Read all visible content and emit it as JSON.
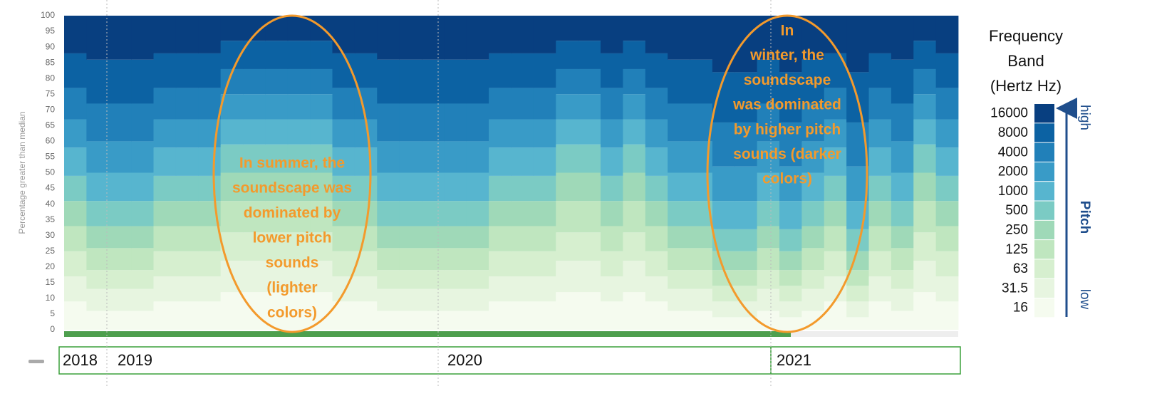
{
  "chart_data": {
    "type": "stacked_bar",
    "y_label": "Percentage greater than median",
    "ylim": [
      0,
      100
    ],
    "yticks": [
      0,
      5,
      10,
      15,
      20,
      25,
      30,
      35,
      40,
      45,
      50,
      55,
      60,
      65,
      70,
      75,
      80,
      85,
      90,
      95,
      100
    ],
    "categories": [
      null,
      null,
      null,
      null,
      null,
      null,
      null,
      null,
      null,
      null,
      null,
      null,
      null,
      null,
      null,
      null,
      null,
      null,
      null,
      null,
      null,
      null,
      null,
      null,
      null,
      null,
      null,
      null,
      null,
      null,
      null,
      null,
      null,
      null,
      null,
      null,
      null,
      null,
      null,
      null
    ],
    "year_labels": [
      "2018",
      "2019",
      "2020",
      "2021"
    ],
    "legend_title": [
      "Frequency",
      "Band",
      "(Hertz Hz)"
    ],
    "pitch_labels": {
      "high": "high",
      "axis": "Pitch",
      "low": "low"
    },
    "annotations": [
      {
        "lines": [
          "In summer, the",
          "soundscape was",
          "dominated by",
          "lower pitch",
          "sounds",
          "(lighter",
          "colors)"
        ]
      },
      {
        "lines": [
          "In",
          "winter, the",
          "soundscape",
          "was dominated",
          "by higher pitch",
          "sounds (darker",
          "colors)"
        ]
      }
    ],
    "series": [
      {
        "name": "16",
        "color": "#f5fbef",
        "values": [
          9,
          6,
          6,
          6,
          9,
          9,
          9,
          12,
          12,
          12,
          12,
          12,
          9,
          9,
          6,
          6,
          6,
          6,
          6,
          9,
          9,
          9,
          12,
          12,
          9,
          12,
          9,
          6,
          6,
          4,
          4,
          6,
          4,
          6,
          9,
          4,
          9,
          6,
          12,
          9
        ]
      },
      {
        "name": "31.5",
        "color": "#e7f5e0",
        "values": [
          8,
          7,
          7,
          7,
          8,
          8,
          8,
          10,
          10,
          10,
          10,
          10,
          8,
          8,
          7,
          7,
          7,
          7,
          7,
          8,
          8,
          8,
          10,
          10,
          8,
          10,
          8,
          7,
          7,
          5,
          5,
          7,
          5,
          7,
          8,
          5,
          8,
          7,
          10,
          8
        ]
      },
      {
        "name": "63",
        "color": "#d6efcf",
        "values": [
          8,
          6,
          6,
          6,
          8,
          8,
          8,
          9,
          9,
          9,
          9,
          9,
          8,
          8,
          6,
          6,
          6,
          6,
          6,
          8,
          8,
          8,
          9,
          9,
          8,
          9,
          8,
          6,
          6,
          5,
          5,
          6,
          5,
          6,
          8,
          5,
          8,
          6,
          9,
          8
        ]
      },
      {
        "name": "125",
        "color": "#bfe6bf",
        "values": [
          8,
          7,
          7,
          7,
          8,
          8,
          8,
          10,
          10,
          10,
          10,
          10,
          8,
          8,
          7,
          7,
          7,
          7,
          7,
          8,
          8,
          8,
          10,
          10,
          8,
          10,
          8,
          7,
          7,
          5,
          5,
          7,
          5,
          7,
          8,
          5,
          8,
          7,
          10,
          8
        ]
      },
      {
        "name": "250",
        "color": "#9fd9b8",
        "values": [
          8,
          7,
          7,
          7,
          8,
          8,
          8,
          9,
          9,
          9,
          9,
          9,
          8,
          8,
          7,
          7,
          7,
          7,
          7,
          8,
          8,
          8,
          9,
          9,
          8,
          9,
          8,
          7,
          7,
          6,
          6,
          7,
          6,
          7,
          8,
          6,
          8,
          7,
          9,
          8
        ]
      },
      {
        "name": "500",
        "color": "#7bcbc4",
        "values": [
          8,
          8,
          8,
          8,
          8,
          8,
          8,
          9,
          9,
          9,
          9,
          9,
          8,
          8,
          8,
          8,
          8,
          8,
          8,
          8,
          8,
          8,
          9,
          9,
          8,
          9,
          8,
          8,
          8,
          7,
          7,
          8,
          7,
          8,
          8,
          7,
          8,
          8,
          9,
          8
        ]
      },
      {
        "name": "1000",
        "color": "#57b5cf",
        "values": [
          9,
          9,
          9,
          9,
          9,
          9,
          9,
          8,
          8,
          8,
          8,
          8,
          9,
          9,
          9,
          9,
          9,
          9,
          9,
          9,
          9,
          9,
          8,
          8,
          9,
          8,
          9,
          9,
          9,
          9,
          9,
          9,
          9,
          9,
          9,
          9,
          9,
          9,
          8,
          9
        ]
      },
      {
        "name": "2000",
        "color": "#399bc7",
        "values": [
          9,
          10,
          10,
          10,
          9,
          9,
          9,
          8,
          8,
          8,
          8,
          8,
          9,
          9,
          10,
          10,
          10,
          10,
          10,
          9,
          9,
          9,
          8,
          8,
          9,
          8,
          9,
          10,
          10,
          11,
          11,
          10,
          11,
          10,
          9,
          11,
          9,
          10,
          8,
          9
        ]
      },
      {
        "name": "4000",
        "color": "#2180b9",
        "values": [
          10,
          12,
          12,
          12,
          10,
          10,
          10,
          8,
          8,
          8,
          8,
          8,
          10,
          10,
          12,
          12,
          12,
          12,
          12,
          10,
          10,
          10,
          8,
          8,
          10,
          8,
          10,
          12,
          12,
          14,
          14,
          12,
          14,
          12,
          10,
          14,
          10,
          12,
          8,
          10
        ]
      },
      {
        "name": "8000",
        "color": "#0c62a3",
        "values": [
          11,
          14,
          14,
          14,
          11,
          11,
          11,
          9,
          9,
          9,
          9,
          9,
          11,
          11,
          14,
          14,
          14,
          14,
          14,
          11,
          11,
          11,
          9,
          9,
          11,
          9,
          11,
          14,
          14,
          16,
          16,
          14,
          16,
          14,
          11,
          16,
          11,
          14,
          9,
          11
        ]
      },
      {
        "name": "16000",
        "color": "#083f80",
        "values": [
          12,
          14,
          14,
          14,
          12,
          12,
          12,
          8,
          8,
          8,
          8,
          8,
          12,
          12,
          14,
          14,
          14,
          14,
          14,
          12,
          12,
          12,
          8,
          8,
          12,
          8,
          12,
          14,
          14,
          18,
          18,
          14,
          18,
          14,
          12,
          18,
          12,
          14,
          8,
          12
        ]
      }
    ]
  }
}
